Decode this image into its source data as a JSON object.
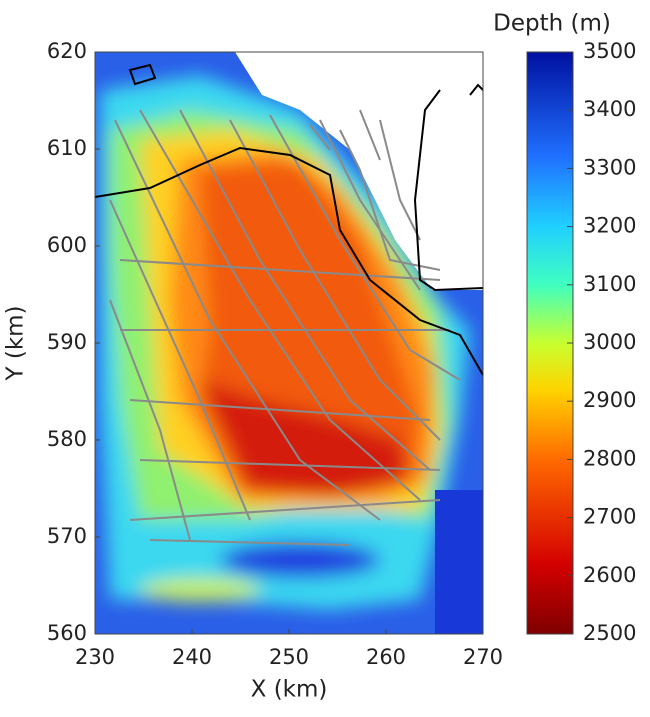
{
  "chart_data": {
    "type": "map",
    "xlabel": "X (km)",
    "ylabel": "Y (km)",
    "xlim": [
      230,
      270
    ],
    "xticks": [
      230,
      240,
      250,
      260,
      270
    ],
    "ylim": [
      560,
      620
    ],
    "yticks": [
      560,
      570,
      580,
      590,
      600,
      610,
      620
    ],
    "colorbar": {
      "label": "Depth (m)",
      "lim": [
        2500,
        3500
      ],
      "ticks": [
        2500,
        2600,
        2700,
        2800,
        2900,
        3000,
        3100,
        3200,
        3300,
        3400,
        3500
      ]
    }
  }
}
